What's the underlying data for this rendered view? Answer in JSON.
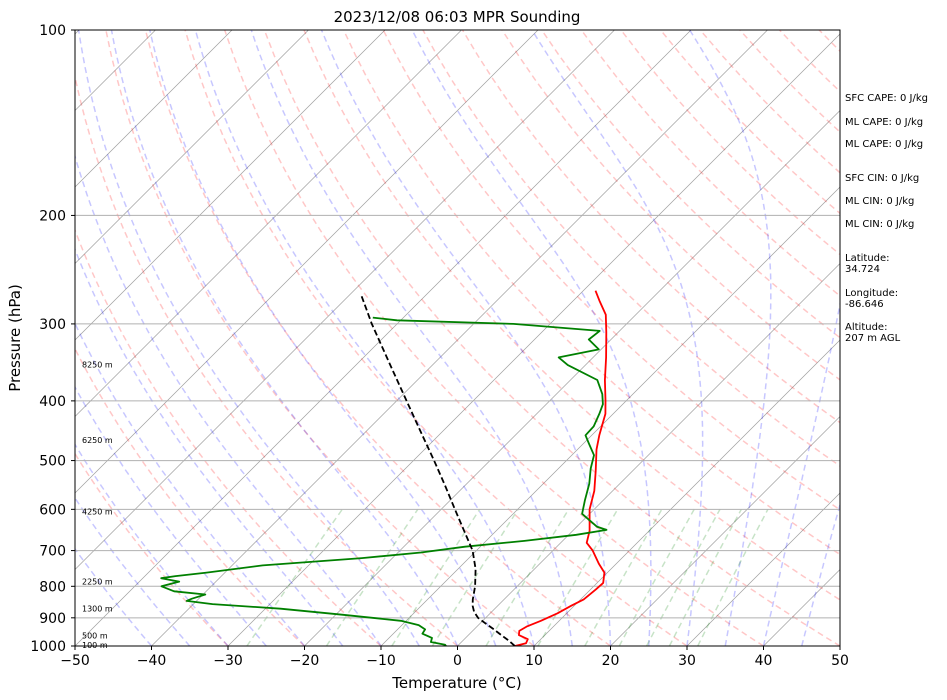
{
  "chart_data": {
    "type": "skew-t",
    "title": "2023/12/08 06:03 MPR Sounding",
    "xlabel": "Temperature (°C)",
    "ylabel": "Pressure (hPa)",
    "xlim": [
      -50,
      50
    ],
    "ylim": [
      1000,
      100
    ],
    "y_scale": "log",
    "grid": true,
    "x_ticks": [
      "−50",
      "−40",
      "−30",
      "−20",
      "−10",
      "0",
      "10",
      "20",
      "30",
      "40",
      "50"
    ],
    "y_ticks": [
      "100",
      "200",
      "300",
      "400",
      "500",
      "600",
      "700",
      "800",
      "900",
      "1000"
    ],
    "series": [
      {
        "role": "temperature",
        "color": "#ff0000",
        "points": [
          [
            1000,
            7.5
          ],
          [
            990,
            8.6
          ],
          [
            975,
            8.3
          ],
          [
            960,
            6.6
          ],
          [
            945,
            6.1
          ],
          [
            930,
            6.5
          ],
          [
            910,
            7.6
          ],
          [
            885,
            8.8
          ],
          [
            860,
            9.6
          ],
          [
            840,
            10.4
          ],
          [
            810,
            10.7
          ],
          [
            790,
            10.8
          ],
          [
            760,
            9.6
          ],
          [
            735,
            7.7
          ],
          [
            700,
            5.2
          ],
          [
            680,
            3.4
          ],
          [
            650,
            2.2
          ],
          [
            600,
            -0.6
          ],
          [
            560,
            -2.4
          ],
          [
            520,
            -4.8
          ],
          [
            480,
            -7.5
          ],
          [
            455,
            -9.0
          ],
          [
            420,
            -11.0
          ],
          [
            400,
            -12.7
          ],
          [
            370,
            -15.5
          ],
          [
            340,
            -18.3
          ],
          [
            310,
            -21.5
          ],
          [
            290,
            -23.9
          ],
          [
            275,
            -26.6
          ],
          [
            265,
            -28.4
          ]
        ]
      },
      {
        "role": "dewpoint",
        "color": "#008000",
        "points": [
          [
            1000,
            -1.5
          ],
          [
            995,
            -1.8
          ],
          [
            985,
            -4.0
          ],
          [
            970,
            -4.4
          ],
          [
            955,
            -6.2
          ],
          [
            940,
            -6.4
          ],
          [
            925,
            -7.8
          ],
          [
            910,
            -10.7
          ],
          [
            890,
            -19.0
          ],
          [
            870,
            -28.0
          ],
          [
            855,
            -37.5
          ],
          [
            845,
            -41.3
          ],
          [
            838,
            -40.9
          ],
          [
            825,
            -39.7
          ],
          [
            815,
            -44.2
          ],
          [
            800,
            -46.5
          ],
          [
            786,
            -44.8
          ],
          [
            776,
            -47.6
          ],
          [
            770,
            -46.0
          ],
          [
            760,
            -42.4
          ],
          [
            740,
            -36.0
          ],
          [
            720,
            -24.0
          ],
          [
            705,
            -17.0
          ],
          [
            690,
            -12.0
          ],
          [
            675,
            -5.0
          ],
          [
            660,
            1.0
          ],
          [
            648,
            4.3
          ],
          [
            640,
            2.6
          ],
          [
            610,
            -1.0
          ],
          [
            580,
            -2.4
          ],
          [
            545,
            -4.0
          ],
          [
            515,
            -5.8
          ],
          [
            490,
            -7.1
          ],
          [
            470,
            -9.2
          ],
          [
            455,
            -10.8
          ],
          [
            440,
            -10.9
          ],
          [
            420,
            -11.8
          ],
          [
            405,
            -12.6
          ],
          [
            390,
            -14.0
          ],
          [
            370,
            -16.5
          ],
          [
            350,
            -22.3
          ],
          [
            340,
            -24.5
          ],
          [
            330,
            -20.3
          ],
          [
            318,
            -22.9
          ],
          [
            308,
            -22.6
          ],
          [
            300,
            -34.8
          ],
          [
            296,
            -50.5
          ],
          [
            293,
            -54
          ]
        ]
      },
      {
        "role": "parcel-profile",
        "color": "#000000",
        "dash": "dashed",
        "points": [
          [
            1000,
            7.5
          ],
          [
            980,
            6.0
          ],
          [
            960,
            4.3
          ],
          [
            940,
            2.6
          ],
          [
            920,
            0.8
          ],
          [
            900,
            -1.0
          ],
          [
            880,
            -2.3
          ],
          [
            860,
            -3.3
          ],
          [
            840,
            -4.1
          ],
          [
            800,
            -5.5
          ],
          [
            750,
            -7.7
          ],
          [
            700,
            -10.5
          ],
          [
            650,
            -14.2
          ],
          [
            600,
            -18.2
          ],
          [
            550,
            -22.5
          ],
          [
            500,
            -27.3
          ],
          [
            450,
            -32.7
          ],
          [
            400,
            -38.7
          ],
          [
            350,
            -45.5
          ],
          [
            300,
            -53.3
          ],
          [
            268,
            -58.7
          ]
        ]
      }
    ],
    "height_labels": [
      {
        "pressure": 997,
        "text": "100 m"
      },
      {
        "pressure": 962,
        "text": "500 m"
      },
      {
        "pressure": 870,
        "text": "1300 m"
      },
      {
        "pressure": 786,
        "text": "2250 m"
      },
      {
        "pressure": 605,
        "text": "4250 m"
      },
      {
        "pressure": 463,
        "text": "6250 m"
      },
      {
        "pressure": 349,
        "text": "8250 m"
      }
    ],
    "background_lines": {
      "dry_adiabats_color": "#ff0000",
      "moist_adiabats_color": "#0000ff",
      "mixing_ratio_color": "#008000",
      "isotherm_color": "#808080"
    }
  },
  "stats": {
    "sfc_cape": "SFC CAPE: 0 J/kg",
    "ml_cape": "ML CAPE: 0 J/kg",
    "mu_cape": "ML CAPE: 0 J/kg",
    "sfc_cin": "SFC CIN: 0 J/kg",
    "ml_cin": "ML CIN: 0 J/kg",
    "mu_cin": "ML CIN: 0 J/kg",
    "latitude_label": "Latitude:",
    "latitude_value": "34.724",
    "longitude_label": "Longitude:",
    "longitude_value": "-86.646",
    "altitude_label": "Altitude:",
    "altitude_value": "207 m AGL"
  }
}
